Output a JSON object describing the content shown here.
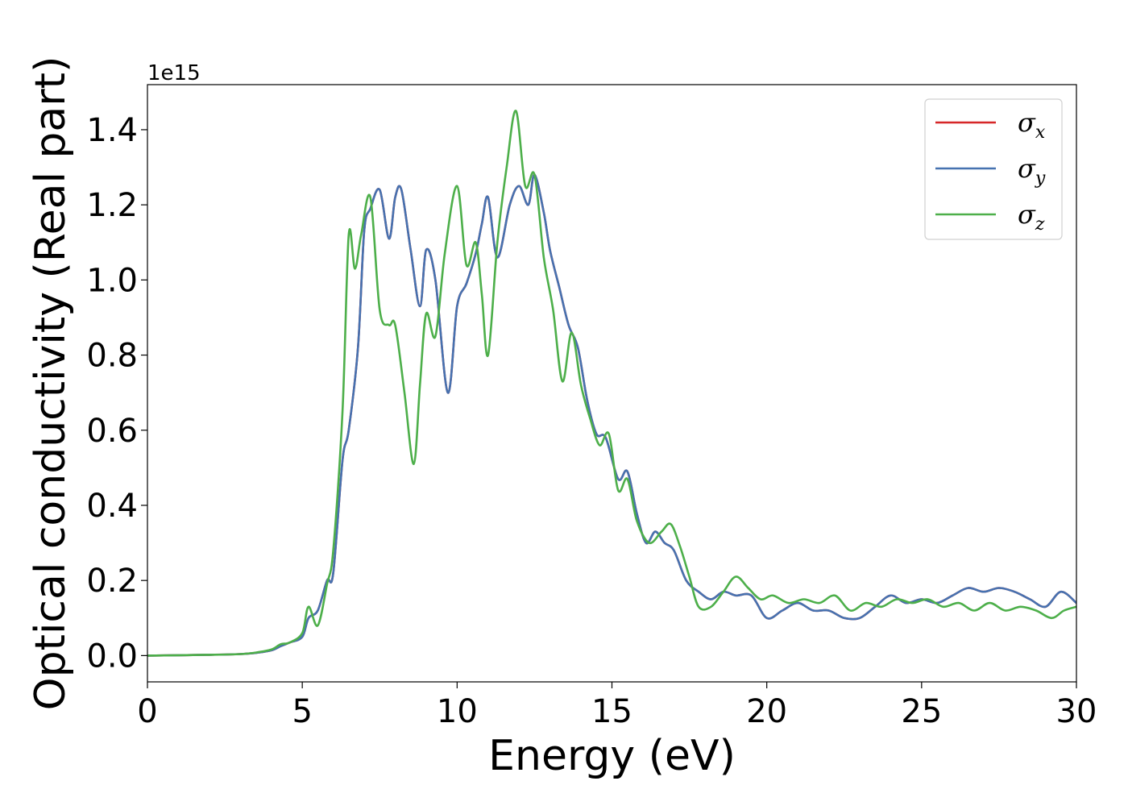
{
  "chart_data": {
    "type": "line",
    "title": "",
    "xlabel": "Energy (eV)",
    "ylabel": "Optical conductivity (Real part)",
    "y_offset_label": "1e15",
    "xlim": [
      0,
      30
    ],
    "ylim": [
      -0.07,
      1.52
    ],
    "xticks": [
      0,
      5,
      10,
      15,
      20,
      25,
      30
    ],
    "xtick_labels": [
      "0",
      "5",
      "10",
      "15",
      "20",
      "25",
      "30"
    ],
    "yticks": [
      0.0,
      0.2,
      0.4,
      0.6,
      0.8,
      1.0,
      1.2,
      1.4
    ],
    "ytick_labels": [
      "0.0",
      "0.2",
      "0.4",
      "0.6",
      "0.8",
      "1.0",
      "1.2",
      "1.4"
    ],
    "grid": false,
    "legend_position": "top-right",
    "series": [
      {
        "name": "σx",
        "symbol": "σ",
        "sub": "x",
        "color": "#d62728",
        "x": [
          0,
          2,
          3,
          3.5,
          4,
          4.3,
          4.6,
          5,
          5.2,
          5.5,
          5.8,
          6,
          6.3,
          6.5,
          6.8,
          7,
          7.2,
          7.5,
          7.8,
          8,
          8.2,
          8.5,
          8.8,
          9,
          9.3,
          9.7,
          10,
          10.3,
          10.6,
          10.8,
          11,
          11.3,
          11.7,
          12,
          12.3,
          12.5,
          12.8,
          13,
          13.3,
          13.6,
          13.9,
          14.2,
          14.5,
          14.8,
          15.2,
          15.5,
          15.8,
          16.1,
          16.4,
          16.7,
          17,
          17.4,
          17.8,
          18.2,
          18.6,
          19,
          19.5,
          20,
          20.5,
          21,
          21.5,
          22,
          22.5,
          23,
          23.5,
          24,
          24.5,
          25,
          25.5,
          26,
          26.5,
          27,
          27.5,
          28,
          28.5,
          29,
          29.5,
          30
        ],
        "y": [
          0,
          0.002,
          0.004,
          0.007,
          0.014,
          0.025,
          0.035,
          0.05,
          0.1,
          0.12,
          0.2,
          0.22,
          0.52,
          0.6,
          0.82,
          1.13,
          1.19,
          1.24,
          1.11,
          1.22,
          1.24,
          1.08,
          0.93,
          1.08,
          1.0,
          0.7,
          0.93,
          0.99,
          1.07,
          1.15,
          1.22,
          1.06,
          1.2,
          1.25,
          1.2,
          1.28,
          1.18,
          1.08,
          0.98,
          0.88,
          0.82,
          0.68,
          0.59,
          0.58,
          0.47,
          0.49,
          0.38,
          0.3,
          0.33,
          0.3,
          0.28,
          0.2,
          0.17,
          0.15,
          0.17,
          0.16,
          0.16,
          0.1,
          0.12,
          0.14,
          0.12,
          0.12,
          0.1,
          0.1,
          0.13,
          0.16,
          0.14,
          0.15,
          0.14,
          0.16,
          0.18,
          0.17,
          0.18,
          0.17,
          0.15,
          0.13,
          0.17,
          0.14
        ]
      },
      {
        "name": "σy",
        "symbol": "σ",
        "sub": "y",
        "color": "#4672b0",
        "x": [
          0,
          2,
          3,
          3.5,
          4,
          4.3,
          4.6,
          5,
          5.2,
          5.5,
          5.8,
          6,
          6.3,
          6.5,
          6.8,
          7,
          7.2,
          7.5,
          7.8,
          8,
          8.2,
          8.5,
          8.8,
          9,
          9.3,
          9.7,
          10,
          10.3,
          10.6,
          10.8,
          11,
          11.3,
          11.7,
          12,
          12.3,
          12.5,
          12.8,
          13,
          13.3,
          13.6,
          13.9,
          14.2,
          14.5,
          14.8,
          15.2,
          15.5,
          15.8,
          16.1,
          16.4,
          16.7,
          17,
          17.4,
          17.8,
          18.2,
          18.6,
          19,
          19.5,
          20,
          20.5,
          21,
          21.5,
          22,
          22.5,
          23,
          23.5,
          24,
          24.5,
          25,
          25.5,
          26,
          26.5,
          27,
          27.5,
          28,
          28.5,
          29,
          29.5,
          30
        ],
        "y": [
          0,
          0.002,
          0.004,
          0.007,
          0.014,
          0.025,
          0.035,
          0.05,
          0.1,
          0.12,
          0.2,
          0.22,
          0.52,
          0.6,
          0.82,
          1.13,
          1.19,
          1.24,
          1.11,
          1.22,
          1.24,
          1.08,
          0.93,
          1.08,
          1.0,
          0.7,
          0.93,
          0.99,
          1.07,
          1.15,
          1.22,
          1.06,
          1.2,
          1.25,
          1.2,
          1.28,
          1.18,
          1.08,
          0.98,
          0.88,
          0.82,
          0.68,
          0.59,
          0.58,
          0.47,
          0.49,
          0.38,
          0.3,
          0.33,
          0.3,
          0.28,
          0.2,
          0.17,
          0.15,
          0.17,
          0.16,
          0.16,
          0.1,
          0.12,
          0.14,
          0.12,
          0.12,
          0.1,
          0.1,
          0.13,
          0.16,
          0.14,
          0.15,
          0.14,
          0.16,
          0.18,
          0.17,
          0.18,
          0.17,
          0.15,
          0.13,
          0.17,
          0.14
        ]
      },
      {
        "name": "σz",
        "symbol": "σ",
        "sub": "z",
        "color": "#4daf4a",
        "x": [
          0,
          2,
          3,
          3.5,
          4,
          4.3,
          4.6,
          5,
          5.2,
          5.5,
          5.8,
          6,
          6.3,
          6.5,
          6.7,
          6.9,
          7.2,
          7.5,
          7.8,
          8,
          8.3,
          8.6,
          8.8,
          9,
          9.3,
          9.6,
          10,
          10.3,
          10.6,
          10.8,
          11,
          11.3,
          11.6,
          11.9,
          12.2,
          12.5,
          12.8,
          13.1,
          13.4,
          13.7,
          14,
          14.3,
          14.6,
          14.9,
          15.2,
          15.5,
          15.8,
          16.2,
          16.6,
          16.9,
          17.2,
          17.5,
          17.8,
          18.2,
          18.6,
          19,
          19.4,
          19.8,
          20.2,
          20.7,
          21.2,
          21.7,
          22.2,
          22.7,
          23.2,
          23.7,
          24.2,
          24.7,
          25.2,
          25.7,
          26.2,
          26.7,
          27.2,
          27.7,
          28.2,
          28.7,
          29.2,
          29.6,
          30
        ],
        "y": [
          0,
          0.002,
          0.004,
          0.008,
          0.016,
          0.03,
          0.035,
          0.06,
          0.13,
          0.08,
          0.19,
          0.28,
          0.65,
          1.12,
          1.03,
          1.12,
          1.22,
          0.92,
          0.88,
          0.88,
          0.7,
          0.51,
          0.72,
          0.91,
          0.85,
          1.07,
          1.25,
          1.04,
          1.1,
          0.96,
          0.8,
          1.1,
          1.3,
          1.45,
          1.25,
          1.28,
          1.06,
          0.92,
          0.73,
          0.86,
          0.72,
          0.63,
          0.56,
          0.59,
          0.44,
          0.47,
          0.36,
          0.3,
          0.33,
          0.35,
          0.29,
          0.21,
          0.13,
          0.13,
          0.17,
          0.21,
          0.18,
          0.15,
          0.16,
          0.14,
          0.15,
          0.14,
          0.16,
          0.12,
          0.14,
          0.13,
          0.15,
          0.14,
          0.15,
          0.13,
          0.14,
          0.12,
          0.14,
          0.12,
          0.13,
          0.12,
          0.1,
          0.12,
          0.13
        ]
      }
    ]
  }
}
